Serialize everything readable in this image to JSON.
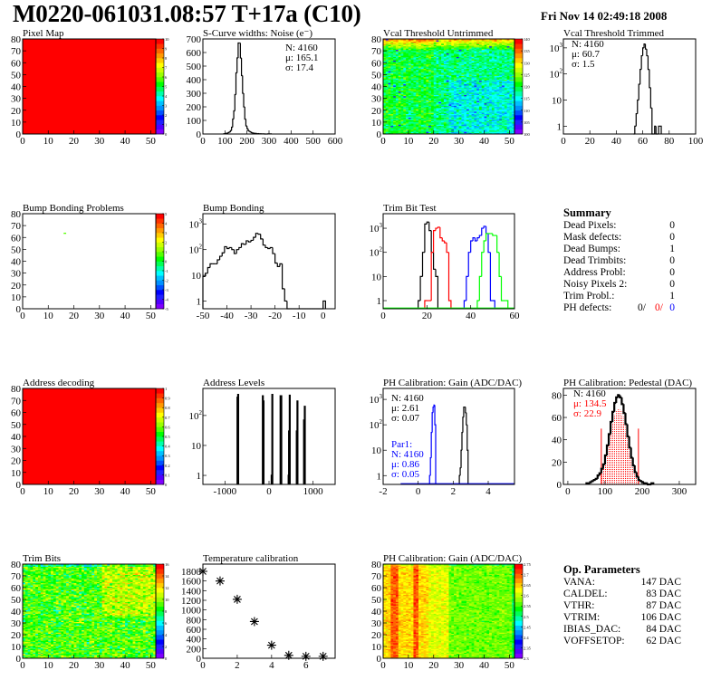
{
  "header": {
    "title": "M0220-061031.08:57 T+17a (C10)",
    "date": "Fri Nov 14 02:49:18 2008"
  },
  "palette": [
    "#8000ff",
    "#5000ff",
    "#2020ff",
    "#0000ff",
    "#0050ff",
    "#0090ff",
    "#00c0ff",
    "#00ffff",
    "#00ffaa",
    "#00ff55",
    "#00ff00",
    "#55ff00",
    "#99ff00",
    "#ccff00",
    "#ffff00",
    "#ffcc00",
    "#ff9900",
    "#ff6600",
    "#ff3300",
    "#ff0000"
  ],
  "chart_data": [
    {
      "id": "pixel_map",
      "title": "Pixel Map",
      "type": "heatmap",
      "xlim": [
        0,
        52
      ],
      "ylim": [
        0,
        80
      ],
      "xticks": [
        0,
        10,
        20,
        30,
        40,
        50
      ],
      "yticks": [
        0,
        10,
        20,
        30,
        40,
        50,
        60,
        70,
        80
      ],
      "z_range": [
        0,
        10
      ],
      "uniform_value": 10,
      "palette_labels": [
        "0",
        "1",
        "2",
        "3",
        "4",
        "5",
        "6",
        "7",
        "8",
        "9",
        "10"
      ]
    },
    {
      "id": "scurve",
      "title": "S-Curve widths: Noise (e⁻)",
      "type": "bar",
      "log": false,
      "xlim": [
        0,
        600
      ],
      "ylim": [
        0,
        700
      ],
      "xticks": [
        0,
        100,
        200,
        300,
        400,
        500,
        600
      ],
      "yticks": [
        0,
        100,
        200,
        300,
        400,
        500,
        600,
        700
      ],
      "stats": [
        {
          "text": "N: 4160",
          "color": "#000000"
        },
        {
          "text": "μ: 165.1",
          "color": "#000000"
        },
        {
          "text": "σ: 17.4",
          "color": "#000000"
        }
      ],
      "series": [
        {
          "color": "#000000",
          "x0": 95,
          "width": 5,
          "values": [
            2,
            3,
            5,
            6,
            10,
            15,
            25,
            50,
            110,
            170,
            290,
            450,
            560,
            670,
            670,
            560,
            430,
            300,
            200,
            110,
            60,
            40,
            25,
            20,
            15,
            10,
            8,
            6,
            5,
            4,
            3,
            3,
            2,
            2,
            1,
            1,
            1,
            0,
            0,
            0,
            1,
            1,
            1
          ]
        }
      ]
    },
    {
      "id": "vcal_untrimmed",
      "title": "Vcal Threshold Untrimmed",
      "type": "heatmap",
      "xlim": [
        0,
        52
      ],
      "ylim": [
        0,
        80
      ],
      "xticks": [
        0,
        10,
        20,
        30,
        40,
        50
      ],
      "yticks": [
        0,
        10,
        20,
        30,
        40,
        50,
        60,
        70,
        80
      ],
      "z_range": [
        98,
        142
      ],
      "palette_labels": [
        "100",
        "105",
        "110",
        "115",
        "120",
        "125",
        "130",
        "135",
        "140"
      ]
    },
    {
      "id": "vcal_trimmed",
      "title": "Vcal Threshold Trimmed",
      "type": "bar",
      "log": true,
      "xlim": [
        0,
        100
      ],
      "ylim": [
        0.5,
        2200
      ],
      "xticks": [
        0,
        20,
        40,
        60,
        80,
        100
      ],
      "yticks": [
        1,
        10,
        100,
        1000
      ],
      "stats": [
        {
          "text": "N: 4160",
          "color": "#000000"
        },
        {
          "text": "μ: 60.7",
          "color": "#000000"
        },
        {
          "text": "σ:  1.5",
          "color": "#000000"
        }
      ],
      "series": [
        {
          "color": "#000000",
          "x0": 53,
          "width": 1,
          "values": [
            0,
            1,
            3,
            10,
            40,
            150,
            500,
            1000,
            1400,
            900,
            500,
            150,
            30,
            5,
            0,
            0,
            1,
            0,
            0,
            1,
            1
          ]
        }
      ]
    },
    {
      "id": "bump_problems",
      "title": "Bump Bonding Problems",
      "type": "heatmap",
      "xlim": [
        0,
        52
      ],
      "ylim": [
        0,
        80
      ],
      "xticks": [
        0,
        10,
        20,
        30,
        40,
        50
      ],
      "yticks": [
        0,
        10,
        20,
        30,
        40,
        50,
        60,
        70,
        80
      ],
      "z_range": [
        -5,
        5
      ],
      "cells": [
        [
          16,
          63,
          0.5
        ]
      ],
      "palette_labels": [
        "-5",
        "-4",
        "-3",
        "-2",
        "-1",
        "0",
        "1",
        "2",
        "3",
        "4",
        "5"
      ]
    },
    {
      "id": "bump_bonding",
      "title": "Bump Bonding",
      "type": "bar",
      "log": true,
      "xlim": [
        -50,
        5
      ],
      "ylim": [
        0.5,
        2500
      ],
      "xticks": [
        -50,
        -40,
        -30,
        -20,
        -10,
        0
      ],
      "yticks": [
        1,
        10,
        100,
        1000
      ],
      "series": [
        {
          "color": "#000000",
          "x0": -50,
          "width": 1,
          "values": [
            9,
            12,
            20,
            28,
            28,
            28,
            40,
            55,
            75,
            130,
            110,
            120,
            100,
            70,
            100,
            120,
            170,
            160,
            220,
            200,
            230,
            300,
            430,
            400,
            260,
            150,
            120,
            110,
            120,
            70,
            30,
            22,
            28,
            3,
            1,
            0,
            0,
            0,
            0,
            0,
            0,
            0,
            0,
            0,
            0,
            0,
            0,
            0,
            0,
            0,
            1
          ]
        }
      ]
    },
    {
      "id": "trim_bit_test",
      "title": "Trim Bit Test",
      "type": "bar",
      "log": true,
      "xlim": [
        0,
        60
      ],
      "ylim": [
        0.46,
        4000
      ],
      "xticks": [
        0,
        20,
        40,
        60
      ],
      "yticks": [
        1,
        10,
        100,
        1000
      ],
      "series": [
        {
          "color": "#000000",
          "x0": 16,
          "width": 1,
          "values": [
            1,
            10,
            100,
            1500,
            1800,
            800,
            100,
            20,
            10
          ]
        },
        {
          "color": "#ff0000",
          "x0": 19,
          "width": 1,
          "values": [
            1,
            1,
            1,
            100,
            800,
            1000,
            1100,
            400,
            300,
            250,
            100,
            1
          ]
        },
        {
          "color": "#0000ff",
          "x0": 37,
          "width": 1,
          "values": [
            1,
            10,
            100,
            300,
            400,
            300,
            400,
            500,
            1000,
            1200,
            600,
            100,
            1,
            1
          ]
        },
        {
          "color": "#00ff00",
          "x0": 43,
          "width": 1,
          "values": [
            1,
            10,
            100,
            300,
            600,
            600,
            600,
            500,
            500,
            100,
            10,
            1,
            1,
            1
          ],
          "baseline": [
            0,
            60
          ]
        }
      ]
    },
    {
      "id": "address_decoding",
      "title": "Address decoding",
      "type": "heatmap",
      "xlim": [
        0,
        52
      ],
      "ylim": [
        0,
        80
      ],
      "xticks": [
        0,
        10,
        20,
        30,
        40,
        50
      ],
      "yticks": [
        0,
        10,
        20,
        30,
        40,
        50,
        60,
        70,
        80
      ],
      "z_range": [
        0,
        1
      ],
      "uniform_value": 1,
      "palette_labels": [
        "0",
        "0.1",
        "0.2",
        "0.3",
        "0.4",
        "0.5",
        "0.6",
        "0.7",
        "0.8",
        "0.9",
        "1"
      ]
    },
    {
      "id": "address_levels",
      "title": "Address Levels",
      "type": "bar",
      "log": true,
      "xlim": [
        -1500,
        1500
      ],
      "ylim": [
        0.5,
        800
      ],
      "xticks": [
        -1000,
        0,
        1000
      ],
      "yticks": [
        1,
        10,
        100
      ],
      "series": [
        {
          "color": "#000000",
          "width": 12,
          "points": [
            [
              -715,
              400
            ],
            [
              -700,
              500
            ],
            [
              -140,
              450
            ],
            [
              -125,
              300
            ],
            [
              60,
              1
            ],
            [
              75,
              500
            ],
            [
              262,
              450
            ],
            [
              278,
              450
            ],
            [
              445,
              1
            ],
            [
              455,
              30
            ],
            [
              470,
              470
            ],
            [
              630,
              30
            ],
            [
              645,
              300
            ],
            [
              795,
              70
            ],
            [
              812,
              200
            ]
          ]
        }
      ]
    },
    {
      "id": "ph_gain",
      "title": "PH Calibration: Gain (ADC/DAC)",
      "type": "bar",
      "log": true,
      "xlim": [
        -2,
        5.5
      ],
      "ylim": [
        0.45,
        2700
      ],
      "xticks": [
        -2,
        0,
        2,
        4
      ],
      "yticks": [
        1,
        10,
        100,
        1000
      ],
      "stats": [
        {
          "text": "N: 4160",
          "color": "#000000"
        },
        {
          "text": "μ: 2.61",
          "color": "#000000"
        },
        {
          "text": "σ: 0.07",
          "color": "#000000"
        }
      ],
      "stats2": [
        {
          "text": "Par1:",
          "color": "#0000ff"
        },
        {
          "text": "N: 4160",
          "color": "#0000ff"
        },
        {
          "text": "μ: 0.86",
          "color": "#0000ff"
        },
        {
          "text": "σ: 0.05",
          "color": "#0000ff"
        }
      ],
      "series": [
        {
          "color": "#000000",
          "x0": 2.35,
          "width": 0.05,
          "values": [
            1,
            2,
            10,
            50,
            200,
            500,
            500,
            300,
            100,
            10
          ]
        },
        {
          "color": "#0000ff",
          "x0": 0.65,
          "width": 0.05,
          "values": [
            1,
            5,
            50,
            300,
            500,
            600,
            100
          ],
          "baseline": [
            -1,
            5.5
          ]
        }
      ]
    },
    {
      "id": "ph_pedestal",
      "title": "PH Calibration: Pedestal (DAC)",
      "type": "bar",
      "log": false,
      "xlim": [
        -12,
        344
      ],
      "ylim": [
        0,
        86
      ],
      "xticks": [
        0,
        100,
        200,
        300
      ],
      "yticks": [
        0,
        20,
        40,
        60,
        80
      ],
      "stats": [
        {
          "text": "N: 4160",
          "color": "#000000"
        },
        {
          "text": "μ: 134.5",
          "color": "#ff0000"
        },
        {
          "text": "σ: 22.9",
          "color": "#ff0000"
        }
      ],
      "fit_range": [
        90,
        190
      ],
      "fit_color": "#ff0000",
      "series": [
        {
          "color": "#000000",
          "x0": 50,
          "width": 5,
          "values": [
            1,
            1,
            2,
            3,
            4,
            5,
            8,
            10,
            14,
            18,
            26,
            35,
            45,
            56,
            65,
            73,
            78,
            80,
            78,
            72,
            64,
            54,
            43,
            33,
            24,
            17,
            11,
            7,
            4,
            3,
            2,
            1,
            1,
            0,
            0,
            1
          ]
        }
      ]
    },
    {
      "id": "trim_bits",
      "title": "Trim Bits",
      "type": "heatmap",
      "xlim": [
        0,
        52
      ],
      "ylim": [
        0,
        80
      ],
      "xticks": [
        0,
        10,
        20,
        30,
        40,
        50
      ],
      "yticks": [
        0,
        10,
        20,
        30,
        40,
        50,
        60,
        70,
        80
      ],
      "z_range": [
        0,
        16
      ],
      "palette_labels": [
        "0",
        "2",
        "4",
        "6",
        "8",
        "10",
        "12",
        "14",
        "16"
      ]
    },
    {
      "id": "temperature",
      "title": "Temperature calibration",
      "type": "scatter",
      "xlim": [
        0,
        7.7
      ],
      "ylim": [
        0,
        1950
      ],
      "xticks": [
        0,
        2,
        4,
        6
      ],
      "yticks": [
        0,
        200,
        400,
        600,
        800,
        1000,
        1200,
        1400,
        1600,
        1800
      ],
      "x": [
        0,
        1,
        2,
        3,
        4,
        5,
        6,
        7
      ],
      "y": [
        1800,
        1600,
        1220,
        760,
        270,
        60,
        40,
        40
      ]
    },
    {
      "id": "ph_gain_map",
      "title": "PH Calibration: Gain (ADC/DAC)",
      "type": "heatmap",
      "xlim": [
        0,
        52
      ],
      "ylim": [
        0,
        80
      ],
      "xticks": [
        0,
        10,
        20,
        30,
        40,
        50
      ],
      "yticks": [
        0,
        10,
        20,
        30,
        40,
        50,
        60,
        70,
        80
      ],
      "z_range": [
        2.3,
        2.78
      ],
      "palette_labels": [
        "2.3",
        "2.35",
        "2.4",
        "2.45",
        "2.5",
        "2.55",
        "2.6",
        "2.65",
        "2.7",
        "2.75"
      ]
    }
  ],
  "summary": {
    "title": "Summary",
    "rows": [
      {
        "label": "Dead Pixels:",
        "value": "0"
      },
      {
        "label": "Mask defects:",
        "value": "0"
      },
      {
        "label": "Dead Bumps:",
        "value": "1"
      },
      {
        "label": "Dead Trimbits:",
        "value": "0"
      },
      {
        "label": "Address Probl:",
        "value": "0"
      },
      {
        "label": "Noisy Pixels 2:",
        "value": "0"
      },
      {
        "label": "Trim Probl.:",
        "value": "1"
      }
    ],
    "ph_defects": {
      "label": "PH defects:",
      "v1": "0/",
      "v2": "0/",
      "v3": "0"
    }
  },
  "op_parameters": {
    "title": "Op. Parameters",
    "rows": [
      {
        "label": "VANA:",
        "value": "147 DAC"
      },
      {
        "label": "CALDEL:",
        "value": "83 DAC"
      },
      {
        "label": "VTHR:",
        "value": "87 DAC"
      },
      {
        "label": "VTRIM:",
        "value": "106 DAC"
      },
      {
        "label": "IBIAS_DAC:",
        "value": "84 DAC"
      },
      {
        "label": "VOFFSETOP:",
        "value": "62 DAC"
      }
    ]
  }
}
